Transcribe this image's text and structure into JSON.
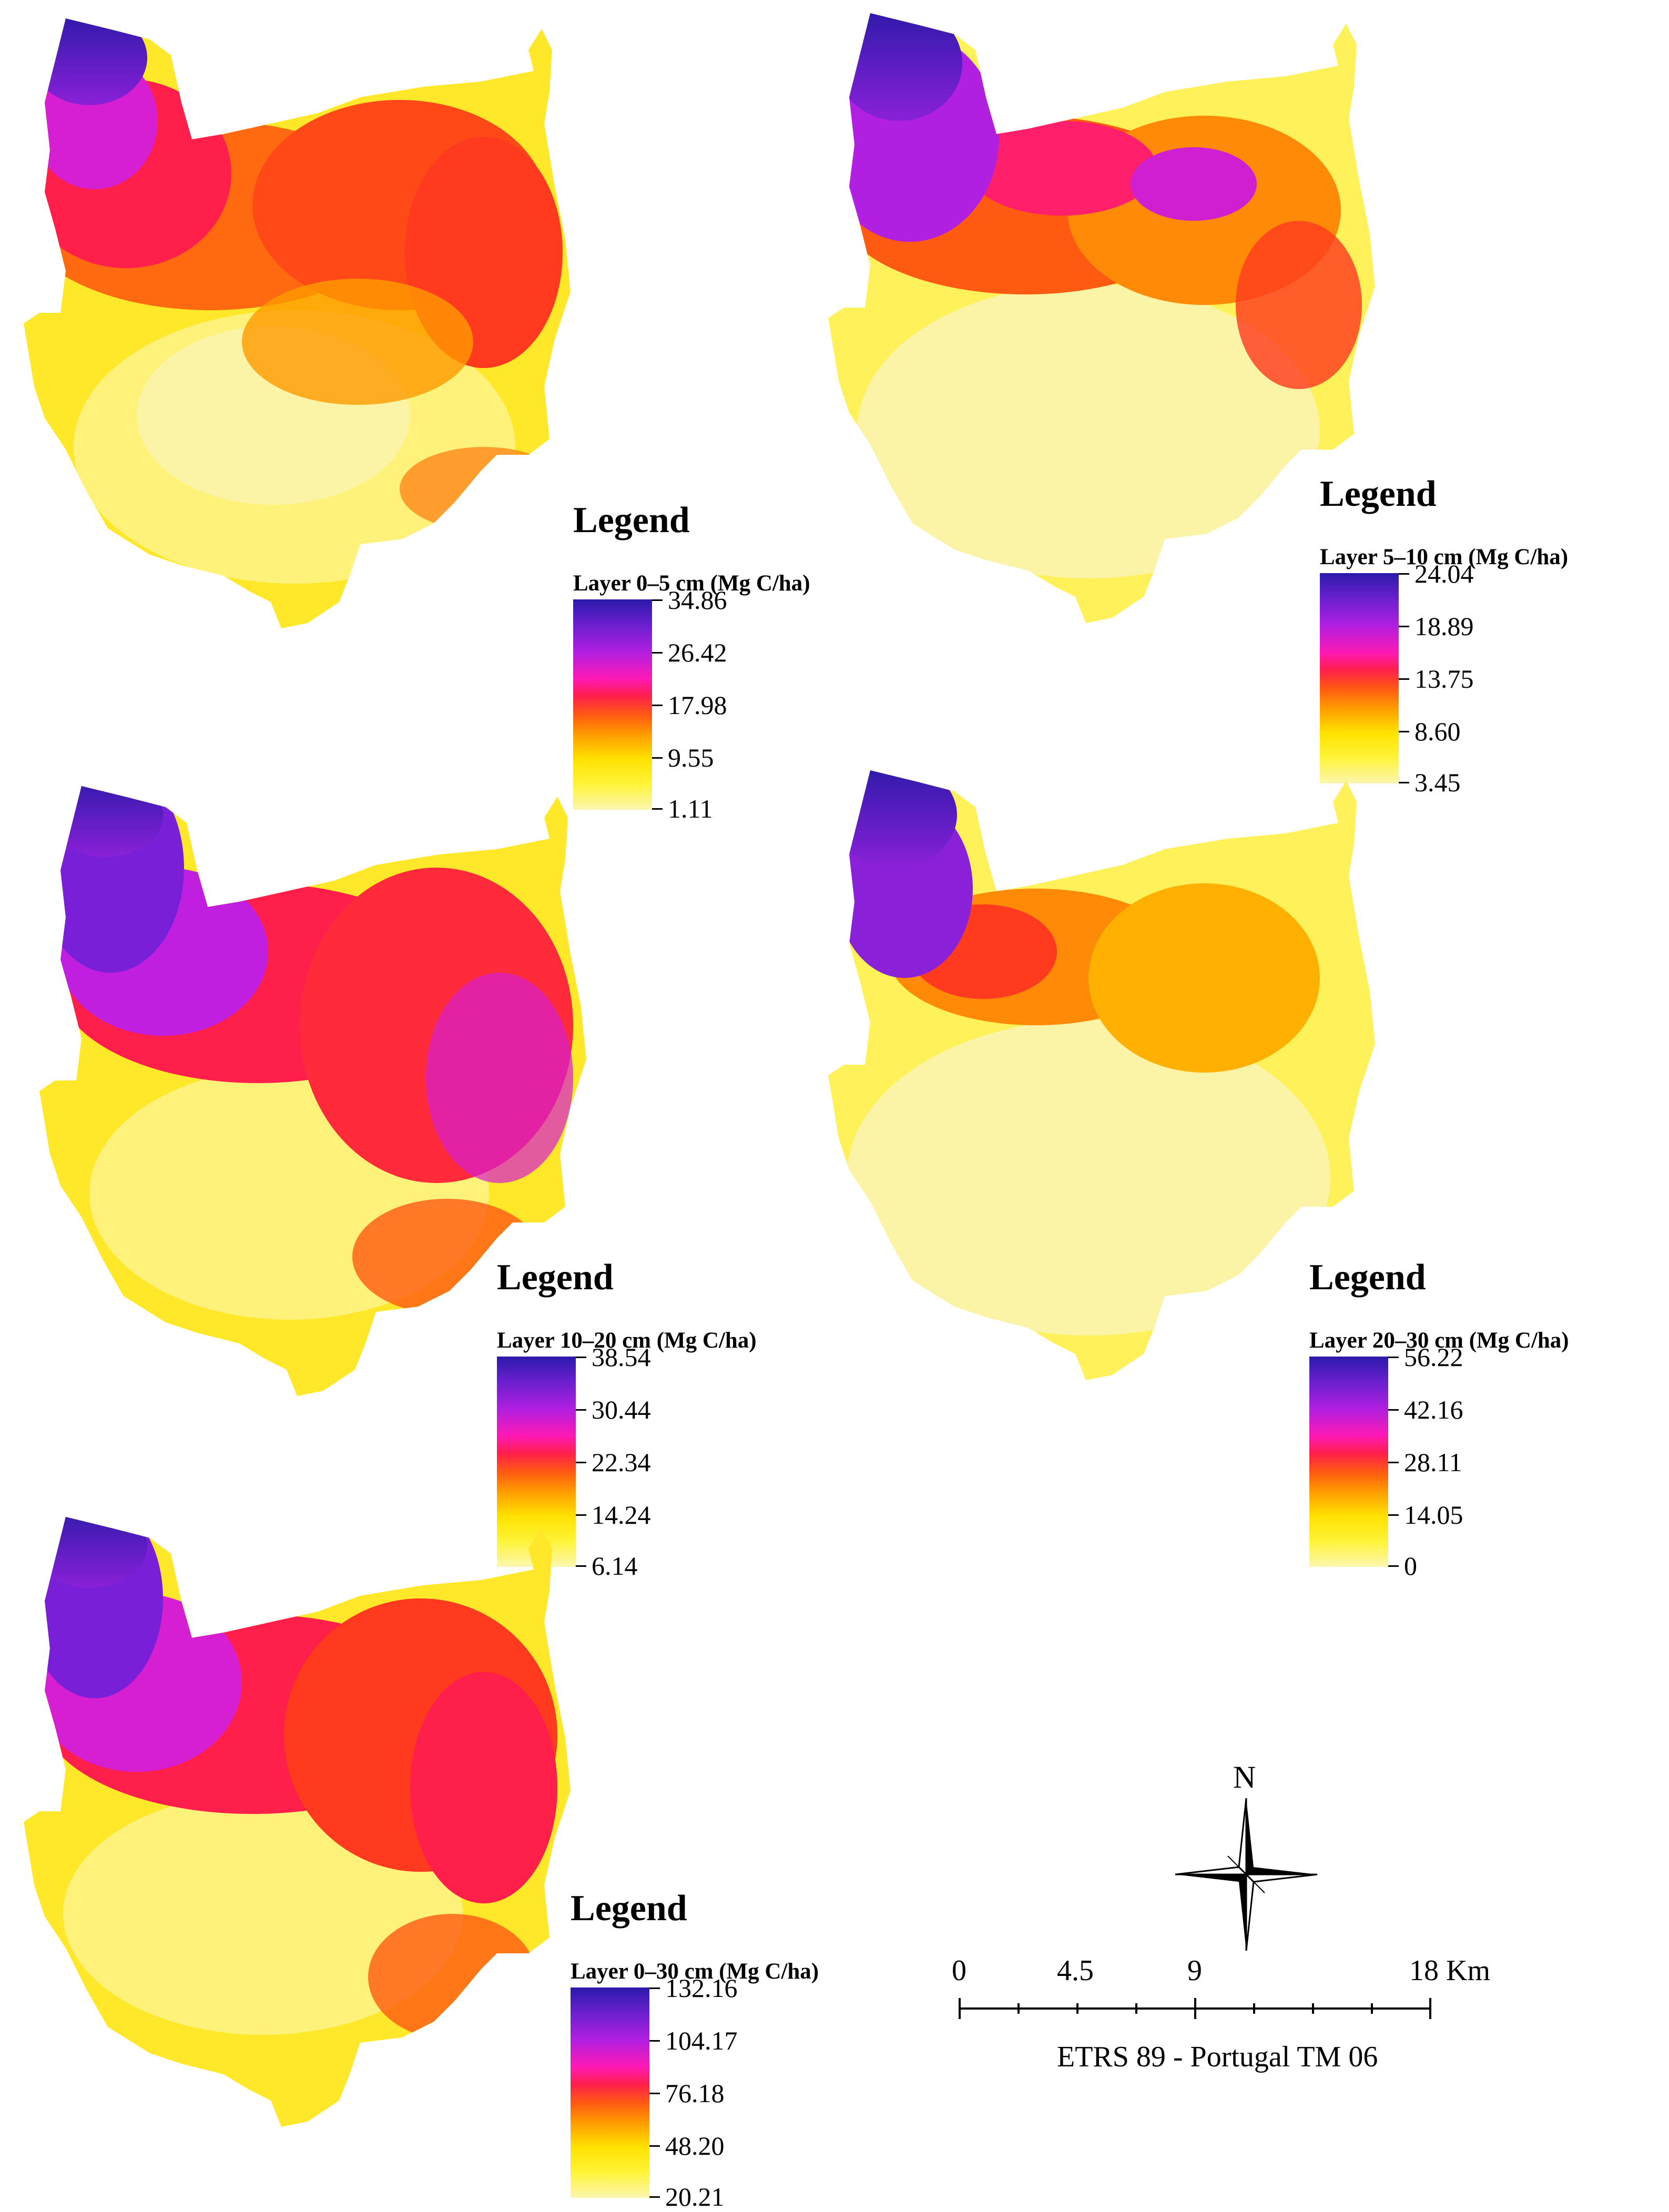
{
  "maps": [
    {
      "legend_title": "Legend",
      "layer_label": "Layer 0–5 cm (Mg C/ha)",
      "ticks": [
        "34.86",
        "26.42",
        "17.98",
        "9.55",
        "1.11"
      ]
    },
    {
      "legend_title": "Legend",
      "layer_label": "Layer 5–10 cm (Mg C/ha)",
      "ticks": [
        "24.04",
        "18.89",
        "13.75",
        "8.60",
        "3.45"
      ]
    },
    {
      "legend_title": "Legend",
      "layer_label": "Layer 10–20 cm (Mg C/ha)",
      "ticks": [
        "38.54",
        "30.44",
        "22.34",
        "14.24",
        "6.14"
      ]
    },
    {
      "legend_title": "Legend",
      "layer_label": "Layer 20–30 cm (Mg C/ha)",
      "ticks": [
        "56.22",
        "42.16",
        "28.11",
        "14.05",
        "0"
      ]
    },
    {
      "legend_title": "Legend",
      "layer_label": "Layer 0–30 cm (Mg C/ha)",
      "ticks": [
        "132.16",
        "104.17",
        "76.18",
        "48.20",
        "20.21"
      ]
    }
  ],
  "color_ramp": [
    "#2b1aa8",
    "#b11fe0",
    "#ff19b4",
    "#ff1f4a",
    "#ff9a00",
    "#ffe200",
    "#fbf6b0"
  ],
  "north_arrow": {
    "label": "N",
    "icon": "north-arrow-icon"
  },
  "scale_bar": {
    "labels": [
      "0",
      "4.5",
      "9",
      "18 Km"
    ],
    "crs": "ETRS 89 - Portugal TM 06"
  }
}
